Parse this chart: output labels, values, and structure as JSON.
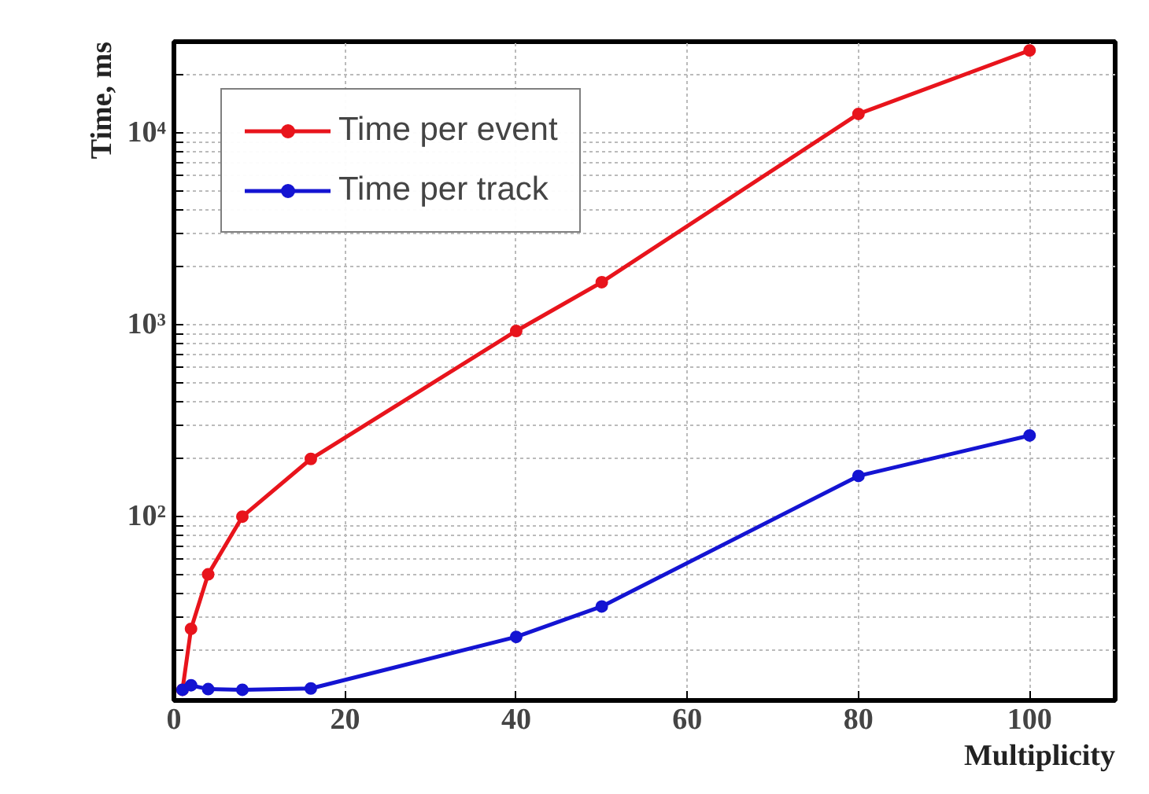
{
  "chart_data": {
    "type": "line",
    "xlabel": "Multiplicity",
    "ylabel": "Time, ms",
    "log": "y",
    "grid": true,
    "legend": "top left",
    "marker": "circle",
    "line_style": "solid",
    "xlim": [
      0,
      110
    ],
    "xticks": [
      0,
      20,
      40,
      60,
      80,
      100
    ],
    "ylim": [
      11,
      30000
    ],
    "yticks": [
      {
        "value": 20,
        "label": null
      },
      {
        "value": 30,
        "label": null
      },
      {
        "value": 40,
        "label": null
      },
      {
        "value": 50,
        "label": null
      },
      {
        "value": 60,
        "label": null
      },
      {
        "value": 70,
        "label": null
      },
      {
        "value": 80,
        "label": null
      },
      {
        "value": 90,
        "label": null
      },
      {
        "value": 100,
        "label": "10²"
      },
      {
        "value": 200,
        "label": null
      },
      {
        "value": 300,
        "label": null
      },
      {
        "value": 400,
        "label": null
      },
      {
        "value": 500,
        "label": null
      },
      {
        "value": 600,
        "label": null
      },
      {
        "value": 700,
        "label": null
      },
      {
        "value": 800,
        "label": null
      },
      {
        "value": 900,
        "label": null
      },
      {
        "value": 1000,
        "label": "10³"
      },
      {
        "value": 2000,
        "label": null
      },
      {
        "value": 3000,
        "label": null
      },
      {
        "value": 4000,
        "label": null
      },
      {
        "value": 5000,
        "label": null
      },
      {
        "value": 6000,
        "label": null
      },
      {
        "value": 7000,
        "label": null
      },
      {
        "value": 8000,
        "label": null
      },
      {
        "value": 9000,
        "label": null
      },
      {
        "value": 10000,
        "label": "10⁴"
      },
      {
        "value": 20000,
        "label": null
      }
    ],
    "x": [
      1,
      2,
      4,
      8,
      16,
      40,
      50,
      80,
      100
    ],
    "series": [
      {
        "name": "Time per event",
        "color": "#e8141c",
        "values": [
          12.5,
          26,
          50,
          100,
          200,
          930,
          1670,
          12600,
          27000
        ]
      },
      {
        "name": "Time per track",
        "color": "#1414d2",
        "values": [
          12.5,
          13.2,
          12.6,
          12.5,
          12.7,
          23.6,
          34,
          163,
          265
        ]
      }
    ]
  }
}
